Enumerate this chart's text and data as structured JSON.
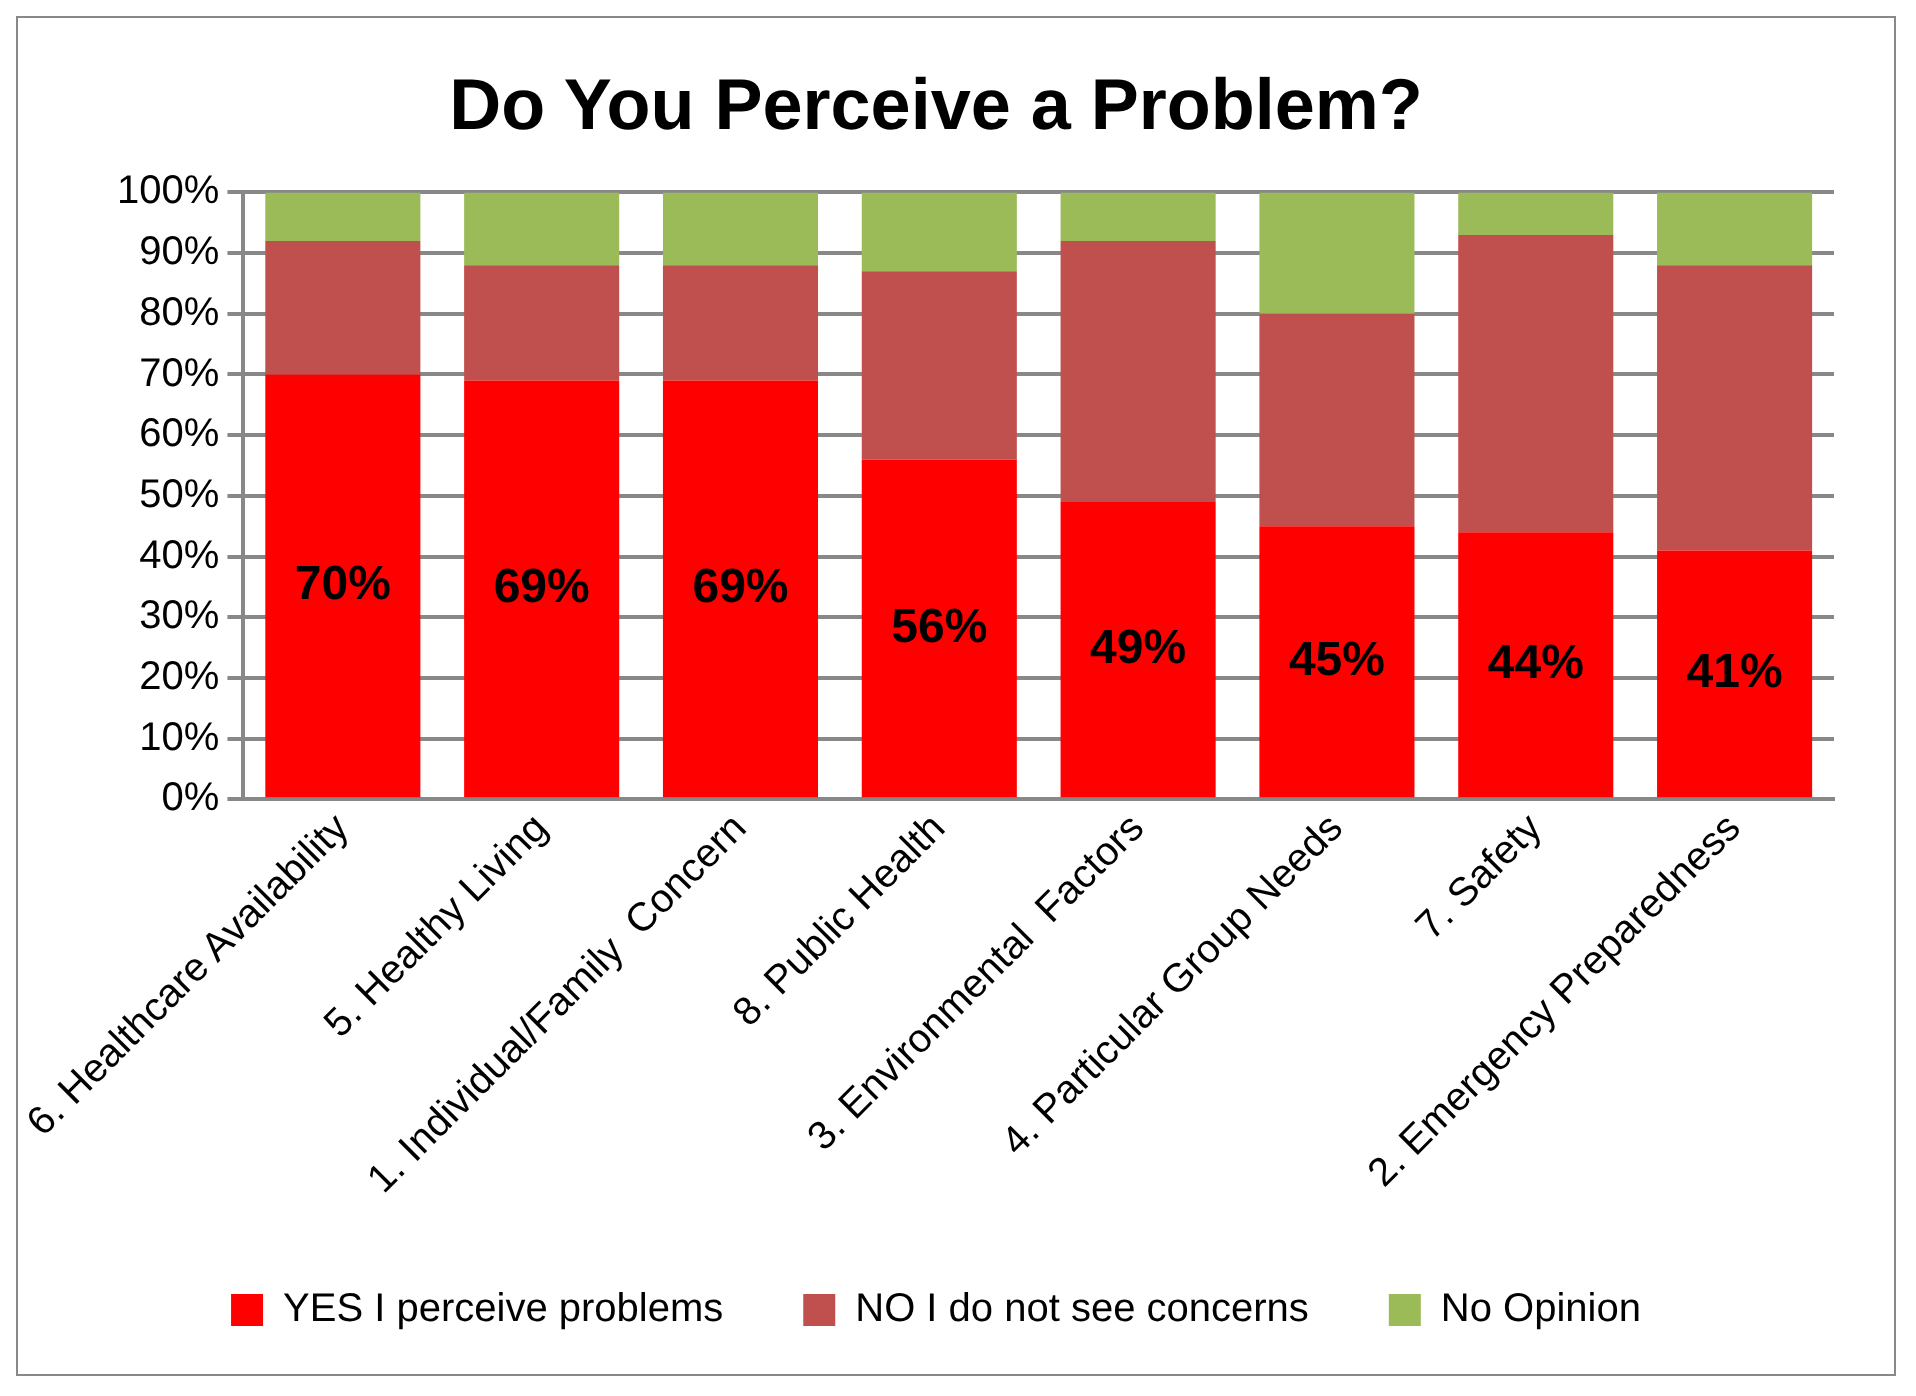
{
  "chart_data": {
    "type": "bar",
    "title": "Do You Perceive a Problem?",
    "categories": [
      "6. Healthcare Availability",
      "5. Healthy Living",
      "1. Individual/Family  Concern",
      "8. Public Health",
      "3. Environmental  Factors",
      "4. Particular Group Needs",
      "7. Safety",
      "2. Emergency Preparedness"
    ],
    "series": [
      {
        "name": "YES I perceive problems",
        "color": "#ff0000",
        "values": [
          70,
          69,
          69,
          56,
          49,
          45,
          44,
          41
        ],
        "value_labels": [
          "70%",
          "69%",
          "69%",
          "56%",
          "49%",
          "45%",
          "44%",
          "41%"
        ]
      },
      {
        "name": "NO I do not see concerns",
        "color": "#c0504d",
        "values": [
          22,
          19,
          19,
          31,
          43,
          35,
          49,
          47
        ]
      },
      {
        "name": "No Opinion",
        "color": "#9bbb59",
        "values": [
          8,
          12,
          12,
          13,
          8,
          20,
          7,
          12
        ]
      }
    ],
    "stacked": true,
    "ylim": [
      0,
      100
    ],
    "yticks": [
      {
        "value": 0,
        "label": "0%"
      },
      {
        "value": 10,
        "label": "10%"
      },
      {
        "value": 20,
        "label": "20%"
      },
      {
        "value": 30,
        "label": "30%"
      },
      {
        "value": 40,
        "label": "40%"
      },
      {
        "value": 50,
        "label": "50%"
      },
      {
        "value": 60,
        "label": "60%"
      },
      {
        "value": 70,
        "label": "70%"
      },
      {
        "value": 80,
        "label": "80%"
      },
      {
        "value": 90,
        "label": "90%"
      },
      {
        "value": 100,
        "label": "100%"
      }
    ],
    "grid": "y",
    "legend": "bottom"
  }
}
